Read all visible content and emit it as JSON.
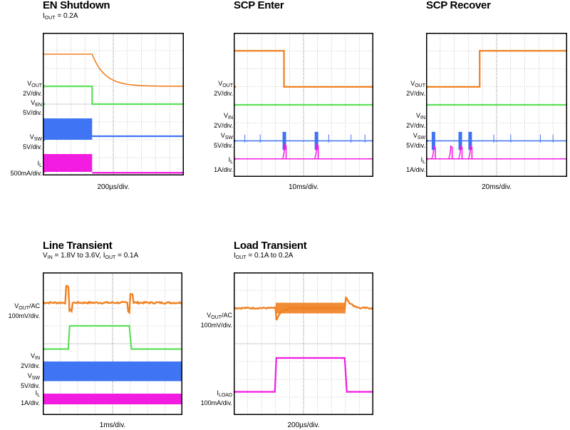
{
  "colors": {
    "vout": "#f08020",
    "ven": "#5ee05a",
    "vsw": "#3f74f2",
    "il": "#f21ce0",
    "grid": "#9a9a9a",
    "frame": "#000000"
  },
  "chart_data": [
    {
      "id": "en",
      "type": "line",
      "title": "EN Shutdown",
      "subtitle_parts": [
        "I",
        "OUT",
        " = 0.2A"
      ],
      "xlabel": "200µs/div.",
      "grid": {
        "x_divisions": 10,
        "y_divisions": 8
      },
      "series": [
        {
          "name": "VOUT",
          "sub": "OUT",
          "prefix": "V",
          "scale": "2V/div.",
          "color_key": "vout",
          "ground_level_div": 5.0,
          "shape": "exp_decay",
          "before_level_div": 6.8,
          "after_level_div": 5.0,
          "edge_div": 3.5,
          "tau_div": 0.9
        },
        {
          "name": "VEN",
          "sub": "EN",
          "prefix": "V",
          "scale": "5V/div.",
          "color_key": "ven",
          "ground_level_div": 4.0,
          "shape": "step_up",
          "before_level_div": 5.0,
          "after_level_div": 4.0,
          "edge_div": 3.5
        },
        {
          "name": "VSW",
          "sub": "SW",
          "prefix": "V",
          "scale": "5V/div.",
          "color_key": "vsw",
          "ground_level_div": 2.0,
          "shape": "switching_then_flat",
          "band_low_div": 2.0,
          "band_high_div": 3.2,
          "after_level_div": 2.2,
          "edge_div": 3.5
        },
        {
          "name": "IL",
          "sub": "L",
          "prefix": "I",
          "scale": "500mA/div.",
          "color_key": "il",
          "ground_level_div": 0.2,
          "shape": "switching_then_flat",
          "band_low_div": 0.2,
          "band_high_div": 1.2,
          "after_level_div": 0.15,
          "edge_div": 3.5
        }
      ]
    },
    {
      "id": "scp_enter",
      "type": "line",
      "title": "SCP Enter",
      "subtitle_parts": [],
      "xlabel": "10ms/div.",
      "grid": {
        "x_divisions": 10,
        "y_divisions": 8
      },
      "series": [
        {
          "name": "VOUT",
          "sub": "OUT",
          "prefix": "V",
          "scale": "2V/div.",
          "color_key": "vout",
          "ground_level_div": 5.0,
          "shape": "step_down",
          "before_level_div": 7.0,
          "after_level_div": 5.0,
          "edge_div": 3.6
        },
        {
          "name": "VIN",
          "sub": "IN",
          "prefix": "V",
          "scale": "2V/div.",
          "color_key": "ven",
          "ground_level_div": 4.0,
          "shape": "flat",
          "level_div": 4.0
        },
        {
          "name": "VSW",
          "sub": "SW",
          "prefix": "V",
          "scale": "5V/div.",
          "color_key": "vsw",
          "ground_level_div": 2.0,
          "shape": "bursts",
          "level_div": 2.0,
          "burst_height_div": 0.5,
          "bursts_at_div": [
            3.6,
            5.9
          ],
          "spikes_at_div": [
            0.8,
            1.9,
            6.8,
            8.4,
            9.4
          ]
        },
        {
          "name": "IL",
          "sub": "L",
          "prefix": "I",
          "scale": "1A/div.",
          "color_key": "il",
          "ground_level_div": 1.0,
          "shape": "pulses",
          "level_div": 1.0,
          "pulse_height_div": 0.8,
          "pulses_at_div": [
            3.6,
            5.9
          ]
        }
      ]
    },
    {
      "id": "scp_recover",
      "type": "line",
      "title": "SCP Recover",
      "subtitle_parts": [],
      "xlabel": "20ms/div.",
      "grid": {
        "x_divisions": 10,
        "y_divisions": 8
      },
      "series": [
        {
          "name": "VOUT",
          "sub": "OUT",
          "prefix": "V",
          "scale": "2V/div.",
          "color_key": "vout",
          "ground_level_div": 5.0,
          "shape": "step_up",
          "before_level_div": 5.0,
          "after_level_div": 7.0,
          "edge_div": 3.8
        },
        {
          "name": "VIN",
          "sub": "IN",
          "prefix": "V",
          "scale": "2V/div.",
          "color_key": "ven",
          "ground_level_div": 4.0,
          "shape": "flat",
          "level_div": 4.0
        },
        {
          "name": "VSW",
          "sub": "SW",
          "prefix": "V",
          "scale": "5V/div.",
          "color_key": "vsw",
          "ground_level_div": 2.0,
          "shape": "bursts",
          "level_div": 2.0,
          "burst_height_div": 0.5,
          "bursts_at_div": [
            0.5,
            2.4,
            3.1
          ],
          "spikes_at_div": [
            4.8,
            6.0,
            8.1,
            9.0
          ]
        },
        {
          "name": "IL",
          "sub": "L",
          "prefix": "I",
          "scale": "1A/div.",
          "color_key": "il",
          "ground_level_div": 1.0,
          "shape": "pulses",
          "level_div": 1.0,
          "pulse_height_div": 0.7,
          "pulses_at_div": [
            0.5,
            1.7,
            2.4,
            3.1
          ]
        }
      ]
    },
    {
      "id": "line",
      "type": "line",
      "title": "Line Transient",
      "subtitle_parts": [
        "V",
        "IN",
        " = 1.8V to 3.6V, I",
        "OUT",
        " = 0.1A"
      ],
      "xlabel": "1ms/div.",
      "grid": {
        "x_divisions": 8,
        "y_divisions": 8
      },
      "series": [
        {
          "name": "VOUT/AC",
          "sub": "OUT",
          "prefix": "V",
          "suffix": "/AC",
          "scale": "100mV/div.",
          "color_key": "vout",
          "ground_level_div": 6.3,
          "shape": "line_transient_vout",
          "level_div": 6.3,
          "edge1_div": 1.5,
          "edge2_div": 5.0
        },
        {
          "name": "VIN",
          "sub": "IN",
          "prefix": "V",
          "scale": "2V/div.",
          "color_key": "ven",
          "ground_level_div": 3.7,
          "shape": "pulse_high",
          "low_div": 3.7,
          "high_div": 5.0,
          "edge1_div": 1.5,
          "edge2_div": 5.0
        },
        {
          "name": "VSW",
          "sub": "SW",
          "prefix": "V",
          "scale": "5V/div.",
          "color_key": "vsw",
          "ground_level_div": 2.0,
          "shape": "switching",
          "band_low_div": 1.9,
          "band_high_div": 3.0
        },
        {
          "name": "IL",
          "sub": "L",
          "prefix": "I",
          "scale": "1A/div.",
          "color_key": "il",
          "ground_level_div": 0.7,
          "shape": "switching",
          "band_low_div": 0.6,
          "band_high_div": 1.2
        }
      ]
    },
    {
      "id": "load",
      "type": "line",
      "title": "Load Transient",
      "subtitle_parts": [
        "I",
        "OUT",
        " = 0.1A to 0.2A"
      ],
      "xlabel": "200µs/div.",
      "grid": {
        "x_divisions": 10,
        "y_divisions": 8
      },
      "series": [
        {
          "name": "VOUT/AC",
          "sub": "OUT",
          "prefix": "V",
          "suffix": "/AC",
          "scale": "100mV/div.",
          "color_key": "vout",
          "ground_level_div": 6.0,
          "shape": "load_transient_vout",
          "level_div": 6.0,
          "edge1_div": 3.0,
          "edge2_div": 8.0
        },
        {
          "name": "ILOAD",
          "sub": "LOAD",
          "prefix": "I",
          "scale": "100mA/div.",
          "color_key": "il",
          "ground_level_div": 1.3,
          "shape": "pulse_high",
          "low_div": 1.3,
          "high_div": 3.2,
          "edge1_div": 3.0,
          "edge2_div": 8.0
        }
      ]
    }
  ]
}
